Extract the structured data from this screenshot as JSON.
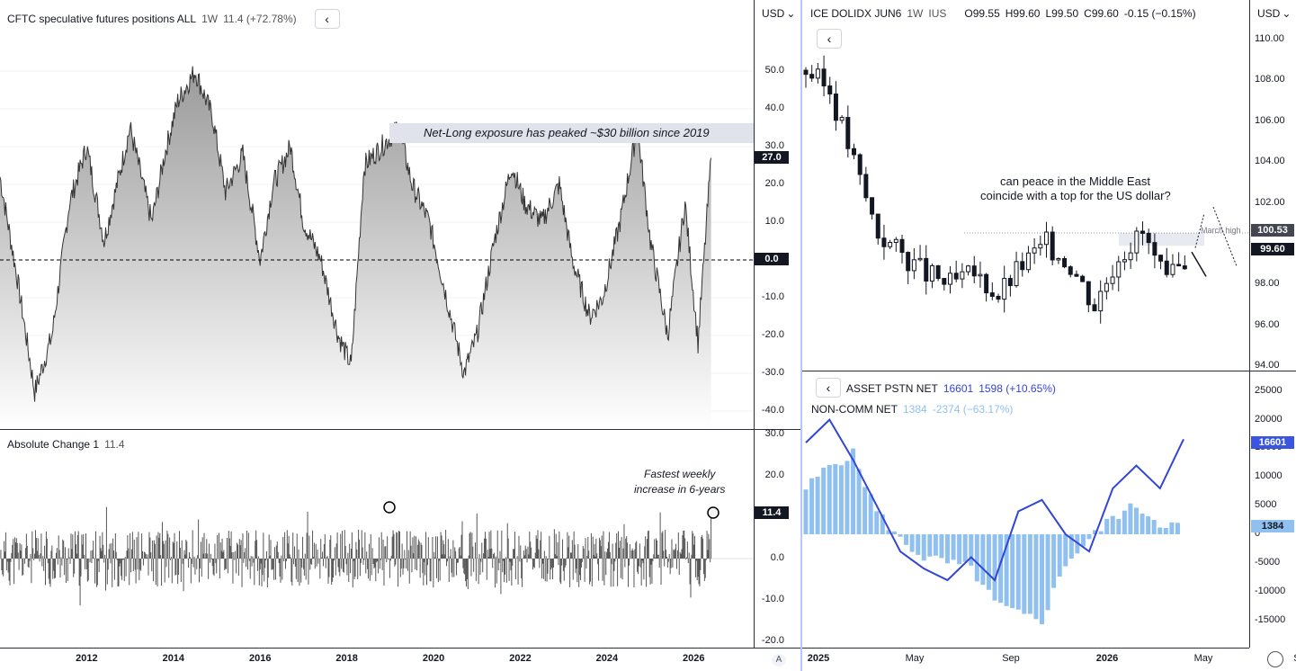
{
  "left": {
    "legend": {
      "title": "CFTC speculative futures positions ALL",
      "interval": "1W",
      "value": "11.4 (+72.78%)"
    },
    "currency_btn": "USD",
    "y_ticks": [
      "50.0",
      "40.0",
      "30.0",
      "20.0",
      "10.0",
      "0.0",
      "-10.0",
      "-20.0",
      "-30.0",
      "-40.0"
    ],
    "last_tag": "27.0",
    "zero_tag": "0.0",
    "annotation": "Net-Long exposure has peaked ~$30 billion since 2019",
    "sub": {
      "legend": {
        "title": "Absolute Change 1",
        "value": "11.4"
      },
      "y_ticks": [
        "30.0",
        "20.0",
        "0.0",
        "-10.0",
        "-20.0"
      ],
      "last_tag": "11.4",
      "annotation_line1": "Fastest weekly",
      "annotation_line2": "increase in 6-years"
    },
    "x_ticks": [
      "2012",
      "2014",
      "2016",
      "2018",
      "2020",
      "2022",
      "2024",
      "2026"
    ],
    "auto_label": "A"
  },
  "right": {
    "legend": {
      "title": "ICE DOLIDX JUN6",
      "interval": "1W",
      "exchange": "IUS",
      "o": "O99.55",
      "h": "H99.60",
      "l": "L99.50",
      "c": "C99.60",
      "chg": "-0.15 (−0.15%)"
    },
    "currency_btn": "USD",
    "y_ticks": [
      "110.00",
      "108.00",
      "106.00",
      "104.00",
      "102.00",
      "98.00",
      "96.00",
      "94.00"
    ],
    "tag_high": "100.53",
    "tag_last": "99.60",
    "march_high_label": "March high",
    "annotation_line1": "can peace in the Middle East",
    "annotation_line2": "coincide with a top for the US dollar?",
    "sub": {
      "legend1": {
        "title": "ASSET PSTN NET",
        "value": "16601",
        "chg": "1598 (+10.65%)"
      },
      "legend2": {
        "title": "NON-COMM NET",
        "value": "1384",
        "chg": "-2374 (−63.17%)"
      },
      "y_ticks": [
        "25000",
        "20000",
        "15000",
        "10000",
        "5000",
        "0",
        "-5000",
        "-10000",
        "-15000"
      ],
      "tag_asset": "16601",
      "tag_noncomm": "1384"
    },
    "x_ticks": [
      "2025",
      "May",
      "Sep",
      "2026",
      "May",
      "Se"
    ]
  },
  "colors": {
    "line_blue": "#3246d3",
    "bar_blue": "#90c0f0",
    "tag_dark": "#131722",
    "tag_asset": "#3a55e0",
    "tag_noncomm": "#90c0f0",
    "tag_usd": "#434651",
    "candle": "#131722"
  },
  "chart_data": [
    {
      "type": "area",
      "title": "CFTC speculative futures positions ALL",
      "ylim": [
        -42,
        58
      ],
      "x": [
        2010.0,
        2010.4,
        2010.8,
        2011.2,
        2011.6,
        2012.0,
        2012.4,
        2012.7,
        2013.0,
        2013.5,
        2013.8,
        2014.1,
        2014.5,
        2014.9,
        2015.2,
        2015.6,
        2016.0,
        2016.3,
        2016.7,
        2017.0,
        2017.4,
        2017.8,
        2018.1,
        2018.4,
        2018.8,
        2019.2,
        2019.5,
        2019.9,
        2020.3,
        2020.7,
        2021.0,
        2021.4,
        2021.8,
        2022.1,
        2022.5,
        2022.9,
        2023.2,
        2023.6,
        2023.9,
        2024.3,
        2024.7,
        2025.0,
        2025.4,
        2025.8,
        2026.1,
        2026.4
      ],
      "y": [
        22,
        -5,
        -35,
        -20,
        15,
        30,
        5,
        20,
        35,
        10,
        28,
        42,
        50,
        38,
        18,
        28,
        0,
        20,
        30,
        10,
        0,
        -20,
        -28,
        25,
        30,
        35,
        20,
        10,
        -10,
        -30,
        -20,
        5,
        25,
        15,
        10,
        20,
        0,
        -15,
        -10,
        10,
        35,
        5,
        -20,
        15,
        -22,
        27
      ],
      "annotations": [
        "Net-Long exposure has peaked ~$30 billion since 2019"
      ]
    },
    {
      "type": "bar",
      "title": "Absolute Change 1",
      "ylim": [
        -20,
        30
      ],
      "last_value": 11.4,
      "annotations": [
        "Fastest weekly increase in 6-years"
      ]
    },
    {
      "type": "line",
      "title": "ICE DOLIDX JUN6",
      "ylim": [
        94,
        111
      ],
      "x": [
        "2025-01",
        "2025-02",
        "2025-03",
        "2025-04",
        "2025-05",
        "2025-06",
        "2025-07",
        "2025-08",
        "2025-09",
        "2025-10",
        "2025-11",
        "2025-12",
        "2026-01",
        "2026-02",
        "2026-03",
        "2026-04",
        "2026-05"
      ],
      "y": [
        108.5,
        107.5,
        104.0,
        100.5,
        99.5,
        98.5,
        98.0,
        98.5,
        97.5,
        99.0,
        100.0,
        99.0,
        97.0,
        99.5,
        100.5,
        98.0,
        99.6
      ],
      "annotations": [
        "March high",
        "can peace in the Middle East coincide with a top for the US dollar?"
      ]
    },
    {
      "type": "line",
      "title": "ASSET PSTN NET / NON-COMM NET",
      "ylim": [
        -17000,
        26000
      ],
      "series": [
        {
          "name": "ASSET PSTN NET",
          "x": [
            "2025-01",
            "2025-02",
            "2025-03",
            "2025-04",
            "2025-05",
            "2025-06",
            "2025-07",
            "2025-08",
            "2025-09",
            "2025-10",
            "2025-11",
            "2025-12",
            "2026-01",
            "2026-02",
            "2026-03",
            "2026-04",
            "2026-05"
          ],
          "values": [
            16000,
            20000,
            13000,
            5000,
            -3000,
            -6000,
            -8000,
            -4000,
            -8000,
            4000,
            6000,
            0,
            -3000,
            8000,
            12000,
            8000,
            16601
          ]
        },
        {
          "name": "NON-COMM NET",
          "x": [
            "2025-01",
            "2025-02",
            "2025-03",
            "2025-04",
            "2025-05",
            "2025-06",
            "2025-07",
            "2025-08",
            "2025-09",
            "2025-10",
            "2025-11",
            "2025-12",
            "2026-01",
            "2026-02",
            "2026-03",
            "2026-04",
            "2026-05"
          ],
          "values": [
            8000,
            12000,
            14000,
            4000,
            -1000,
            -4000,
            -5000,
            -6000,
            -12000,
            -14000,
            -15000,
            -5000,
            -1000,
            3000,
            5000,
            2000,
            1384
          ]
        }
      ]
    }
  ]
}
